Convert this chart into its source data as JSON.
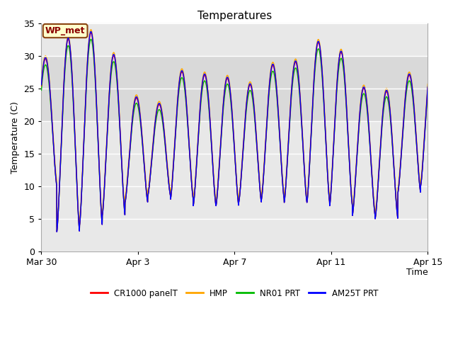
{
  "title": "Temperatures",
  "ylabel": "Temperature (C)",
  "xlabel": "Time",
  "ylim": [
    0,
    35
  ],
  "annotation_text": "WP_met",
  "annotation_facecolor": "#FFFFCC",
  "annotation_edgecolor": "#8B4513",
  "annotation_textcolor": "#8B0000",
  "bg_color": "#DCDCDC",
  "plot_bg_color": "#E8E8E8",
  "fig_bg_color": "#FFFFFF",
  "grid_color": "#FFFFFF",
  "xtick_labels": [
    "Mar 30",
    "Apr 3",
    "Apr 7",
    "Apr 11",
    "Apr 15"
  ],
  "xtick_positions": [
    0,
    4,
    8,
    12,
    16
  ],
  "ytick_positions": [
    0,
    5,
    10,
    15,
    20,
    25,
    30,
    35
  ],
  "legend_entries": [
    {
      "label": "CR1000 panelT",
      "color": "#FF0000"
    },
    {
      "label": "HMP",
      "color": "#FFA500"
    },
    {
      "label": "NR01 PRT",
      "color": "#00BB00"
    },
    {
      "label": "AM25T PRT",
      "color": "#0000FF"
    }
  ],
  "linewidth": 1.0,
  "n_days": 17,
  "ppd": 144,
  "day_peaks": [
    29.5,
    32.5,
    33.5,
    30.0,
    23.5,
    22.5,
    27.5,
    27.0,
    26.5,
    25.5,
    28.5,
    29.0,
    32.0,
    30.5,
    25.0,
    24.5,
    27.0
  ],
  "day_mins": [
    10.0,
    3.0,
    4.0,
    5.5,
    7.5,
    8.5,
    8.0,
    7.0,
    7.0,
    7.5,
    8.0,
    7.5,
    7.5,
    7.0,
    5.5,
    5.0,
    9.0
  ],
  "shaded_band": [
    20,
    30
  ],
  "shaded_color": "#D0D0D0"
}
